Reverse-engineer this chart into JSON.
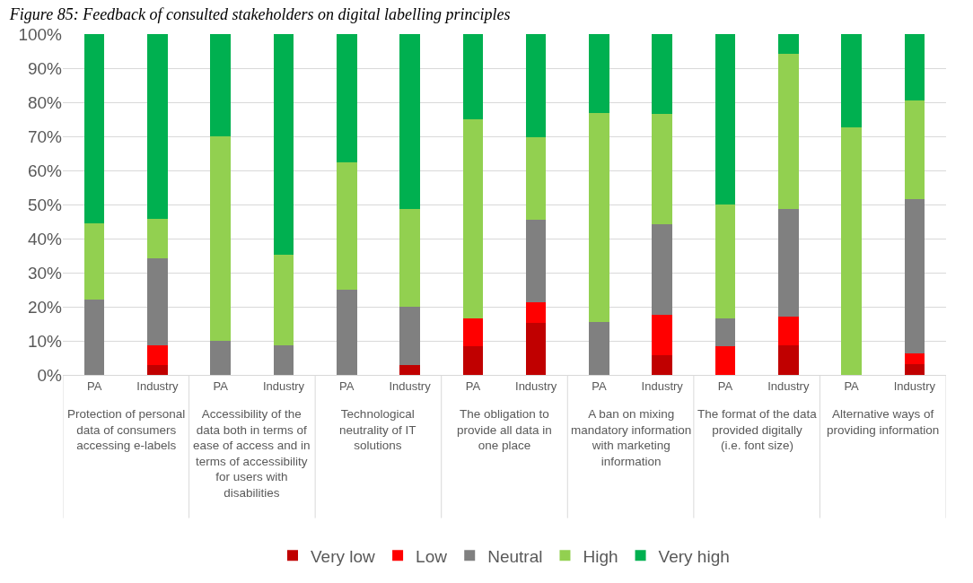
{
  "chart_data": {
    "type": "bar",
    "stacked": true,
    "title": "Figure 85: Feedback of consulted stakeholders on digital labelling principles",
    "categories": [
      "PA",
      "Industry",
      "PA",
      "Industry",
      "PA",
      "Industry",
      "PA",
      "Industry",
      "PA",
      "Industry",
      "PA",
      "Industry",
      "PA",
      "Industry"
    ],
    "annotations": [
      "Protection of personal data of consumers accessing e-labels",
      "Accessibility of the data both in terms of ease of access and in terms of accessibility for users with disabilities",
      "Technological neutrality of IT solutions",
      "The obligation to provide all data in one place",
      "A ban on mixing mandatory information with marketing information",
      "The format of the data provided digitally (i.e. font size)",
      "Alternative ways of providing information"
    ],
    "series": [
      {
        "name": "Very low",
        "color": "#c00000",
        "values": [
          0,
          2.9,
          0,
          0,
          0,
          2.9,
          8.3,
          15.2,
          0,
          5.9,
          0,
          8.6,
          0,
          3.2
        ]
      },
      {
        "name": "Low",
        "color": "#ff0000",
        "values": [
          0,
          5.7,
          0,
          0,
          0,
          0,
          8.3,
          6.1,
          0,
          11.8,
          8.3,
          8.6,
          0,
          3.2
        ]
      },
      {
        "name": "Neutral",
        "color": "#808080",
        "values": [
          22.2,
          25.7,
          10,
          8.8,
          25,
          17.1,
          0,
          24.2,
          15.4,
          26.5,
          8.3,
          31.4,
          0,
          45.2
        ]
      },
      {
        "name": "High",
        "color": "#92d050",
        "values": [
          22.2,
          11.4,
          60,
          26.5,
          37.5,
          28.6,
          58.3,
          24.2,
          61.5,
          32.4,
          33.3,
          45.7,
          72.7,
          29.0
        ]
      },
      {
        "name": "Very high",
        "color": "#00b050",
        "values": [
          55.6,
          54.3,
          30,
          64.7,
          37.5,
          51.4,
          25,
          30.3,
          23.1,
          23.5,
          50,
          5.7,
          27.3,
          19.4
        ]
      }
    ],
    "ylim": [
      0,
      100
    ],
    "yticks": [
      {
        "value": 0,
        "label": "0%"
      },
      {
        "value": 10,
        "label": "10%"
      },
      {
        "value": 20,
        "label": "20%"
      },
      {
        "value": 30,
        "label": "30%"
      },
      {
        "value": 40,
        "label": "40%"
      },
      {
        "value": 50,
        "label": "50%"
      },
      {
        "value": 60,
        "label": "60%"
      },
      {
        "value": 70,
        "label": "70%"
      },
      {
        "value": 80,
        "label": "80%"
      },
      {
        "value": 90,
        "label": "90%"
      },
      {
        "value": 100,
        "label": "100%"
      }
    ],
    "grid": "y",
    "legend": "bottom"
  }
}
